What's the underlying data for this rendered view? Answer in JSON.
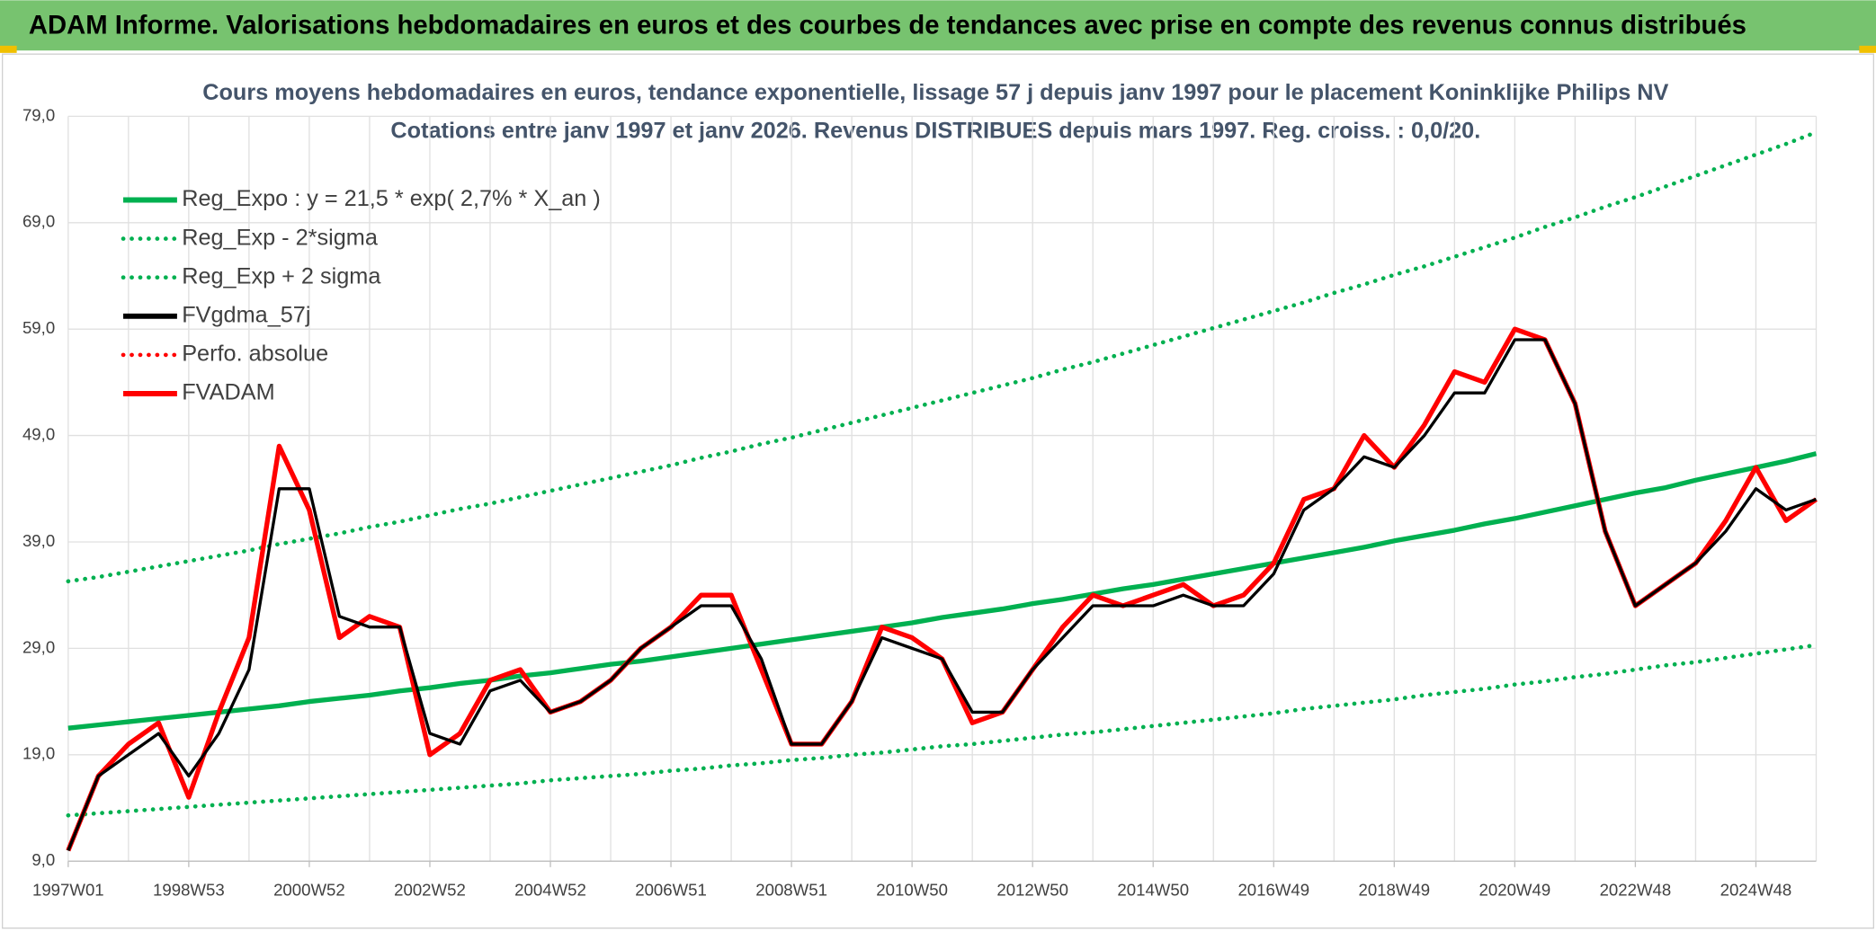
{
  "chart_data": {
    "type": "line",
    "title": "ADAM Informe. Valorisations hebdomadaires en euros et des courbes de tendances avec prise en compte des revenus connus distribués",
    "subtitle": [
      "Cours moyens hebdomadaires en euros, tendance exponentielle, lissage 57 j depuis janv 1997 pour le placement Koninklijke Philips NV",
      "Cotations entre janv 1997 et janv 2026. Revenus DISTRIBUES depuis mars 1997. Reg. croiss. : 0,0/20."
    ],
    "categories": [
      "1997W01",
      null,
      null,
      null,
      "1998W53",
      null,
      null,
      null,
      "2000W52",
      null,
      null,
      null,
      "2002W52",
      null,
      null,
      null,
      "2004W52",
      null,
      null,
      null,
      "2006W51",
      null,
      null,
      null,
      "2008W51",
      null,
      null,
      null,
      "2010W50",
      null,
      null,
      null,
      "2012W50",
      null,
      null,
      null,
      "2014W50",
      null,
      null,
      null,
      "2016W49",
      null,
      null,
      null,
      "2018W49",
      null,
      null,
      null,
      "2020W49",
      null,
      null,
      null,
      "2022W48",
      null,
      null,
      null,
      "2024W48",
      null,
      null
    ],
    "ylim": [
      9,
      79
    ],
    "yticks": [
      {
        "value": 9,
        "label": "9,0"
      },
      {
        "value": 19,
        "label": "19,0"
      },
      {
        "value": 29,
        "label": "29,0"
      },
      {
        "value": 39,
        "label": "39,0"
      },
      {
        "value": 49,
        "label": "49,0"
      },
      {
        "value": 59,
        "label": "59,0"
      },
      {
        "value": 69,
        "label": "69,0"
      },
      {
        "value": 79,
        "label": "79,0"
      }
    ],
    "grid": true,
    "legend": "upper left",
    "series": [
      {
        "name": "Reg_Expo : y = 21,5 * exp( 2,7% *  X_an )",
        "color": "#00b050",
        "dash": "solid",
        "values": [
          21.5,
          21.8,
          22.1,
          22.4,
          22.7,
          23.0,
          23.3,
          23.6,
          24.0,
          24.3,
          24.6,
          25.0,
          25.3,
          25.7,
          26.0,
          26.4,
          26.7,
          27.1,
          27.5,
          27.8,
          28.2,
          28.6,
          29.0,
          29.4,
          29.8,
          30.2,
          30.6,
          31.0,
          31.4,
          31.9,
          32.3,
          32.7,
          33.2,
          33.6,
          34.1,
          34.6,
          35.0,
          35.5,
          36.0,
          36.5,
          37.0,
          37.5,
          38.0,
          38.5,
          39.1,
          39.6,
          40.1,
          40.7,
          41.2,
          41.8,
          42.4,
          43.0,
          43.6,
          44.1,
          44.8,
          45.4,
          46.0,
          46.6,
          47.3
        ]
      },
      {
        "name": "Reg_Exp - 2*sigma",
        "color": "#00b050",
        "dash": "dotted",
        "values": [
          13.3,
          13.5,
          13.7,
          13.9,
          14.1,
          14.3,
          14.5,
          14.7,
          14.9,
          15.1,
          15.3,
          15.5,
          15.7,
          15.9,
          16.1,
          16.3,
          16.6,
          16.8,
          17.0,
          17.2,
          17.5,
          17.7,
          18.0,
          18.2,
          18.5,
          18.7,
          19.0,
          19.2,
          19.5,
          19.8,
          20.0,
          20.3,
          20.6,
          20.9,
          21.1,
          21.4,
          21.7,
          22.0,
          22.3,
          22.6,
          22.9,
          23.3,
          23.6,
          23.9,
          24.2,
          24.6,
          24.9,
          25.2,
          25.6,
          25.9,
          26.3,
          26.6,
          27.0,
          27.4,
          27.7,
          28.1,
          28.5,
          28.9,
          29.3
        ]
      },
      {
        "name": "Reg_Exp + 2 sigma",
        "color": "#00b050",
        "dash": "dotted",
        "values": [
          35.3,
          35.7,
          36.2,
          36.7,
          37.2,
          37.7,
          38.2,
          38.8,
          39.3,
          39.8,
          40.4,
          40.9,
          41.5,
          42.1,
          42.6,
          43.2,
          43.8,
          44.4,
          45.0,
          45.6,
          46.2,
          46.9,
          47.5,
          48.2,
          48.8,
          49.5,
          50.2,
          50.9,
          51.6,
          52.3,
          53.0,
          53.7,
          54.4,
          55.2,
          55.9,
          56.7,
          57.5,
          58.3,
          59.1,
          59.9,
          60.7,
          61.5,
          62.4,
          63.2,
          64.1,
          64.9,
          65.8,
          66.7,
          67.6,
          68.6,
          69.5,
          70.5,
          71.4,
          72.4,
          73.4,
          74.4,
          75.4,
          76.4,
          77.5
        ]
      },
      {
        "name": "FVgdma_57j",
        "color": "#000000",
        "dash": "solid",
        "values": [
          10,
          17,
          19,
          21,
          17,
          21,
          27,
          44,
          44,
          32,
          31,
          31,
          21,
          20,
          25,
          26,
          23,
          24,
          26,
          29,
          31,
          33,
          33,
          28,
          20,
          20,
          24,
          30,
          29,
          28,
          23,
          23,
          27,
          30,
          33,
          33,
          33,
          34,
          33,
          33,
          36,
          42,
          44,
          47,
          46,
          49,
          53,
          53,
          58,
          58,
          52,
          40,
          33,
          35,
          37,
          40,
          44,
          42,
          43
        ]
      },
      {
        "name": "Perfo. absolue",
        "color": "#ff0000",
        "dash": "dotted"
      },
      {
        "name": "FVADAM",
        "color": "#ff0000",
        "dash": "solid",
        "values": [
          10,
          17,
          20,
          22,
          15,
          23,
          30,
          48,
          42,
          30,
          32,
          31,
          19,
          21,
          26,
          27,
          23,
          24,
          26,
          29,
          31,
          34,
          34,
          27,
          20,
          20,
          24,
          31,
          30,
          28,
          22,
          23,
          27,
          31,
          34,
          33,
          34,
          35,
          33,
          34,
          37,
          43,
          44,
          49,
          46,
          50,
          55,
          54,
          59,
          58,
          52,
          40,
          33,
          35,
          37,
          41,
          46,
          41,
          43
        ]
      }
    ]
  }
}
